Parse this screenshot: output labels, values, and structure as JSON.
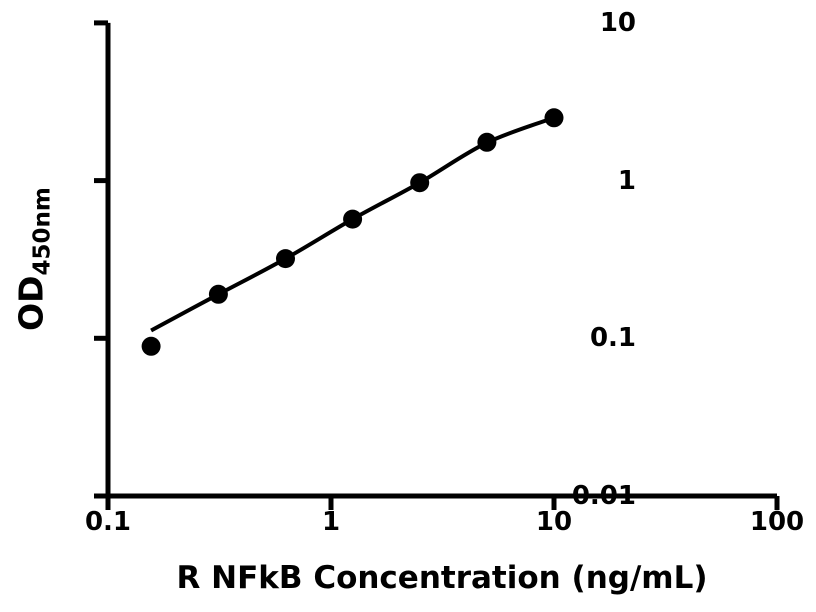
{
  "figure": {
    "background_color": "#ffffff",
    "ink_color": "#000000"
  },
  "chart_data": {
    "type": "scatter",
    "title": "",
    "xlabel": "R NFkB Concentration (ng/mL)",
    "ylabel": "OD",
    "ylabel_subscript": "450nm",
    "x_scale": "log",
    "y_scale": "log",
    "xlim": [
      0.1,
      100
    ],
    "ylim": [
      0.01,
      10
    ],
    "grid": false,
    "legend": null,
    "x_ticks": [
      {
        "value": 0.1,
        "label": "0.1"
      },
      {
        "value": 1,
        "label": "1"
      },
      {
        "value": 10,
        "label": "10"
      },
      {
        "value": 100,
        "label": "100"
      }
    ],
    "y_ticks": [
      {
        "value": 0.01,
        "label": "0.01"
      },
      {
        "value": 0.1,
        "label": "0.1"
      },
      {
        "value": 1,
        "label": "1"
      },
      {
        "value": 10,
        "label": "10"
      }
    ],
    "series": [
      {
        "name": "R NFkB standard points",
        "marker": "filled-circle",
        "color": "#000000",
        "x": [
          0.156,
          0.3125,
          0.625,
          1.25,
          2.5,
          5,
          10
        ],
        "y": [
          0.089,
          0.19,
          0.32,
          0.57,
          0.97,
          1.75,
          2.5
        ]
      }
    ],
    "fit_curve": {
      "name": "standard curve fit",
      "color": "#000000",
      "x": [
        0.156,
        0.3125,
        0.625,
        1.25,
        2.5,
        5,
        10
      ],
      "y": [
        0.112,
        0.19,
        0.32,
        0.57,
        0.97,
        1.74,
        2.5
      ]
    }
  }
}
